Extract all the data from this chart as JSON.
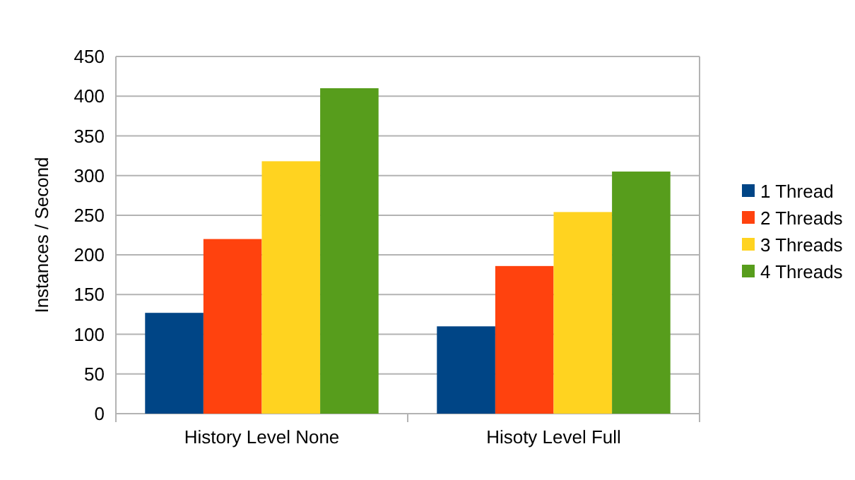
{
  "chart_data": {
    "type": "bar",
    "ylabel": "Instances / Second",
    "categories": [
      "History Level None",
      "Hisoty Level Full"
    ],
    "series": [
      {
        "name": "1 Thread",
        "color": "#004586",
        "values": [
          127,
          110
        ]
      },
      {
        "name": "2 Threads",
        "color": "#ff420e",
        "values": [
          220,
          186
        ]
      },
      {
        "name": "3 Threads",
        "color": "#ffd320",
        "values": [
          318,
          254
        ]
      },
      {
        "name": "4 Threads",
        "color": "#579d1c",
        "values": [
          410,
          305
        ]
      }
    ],
    "ylim": [
      0,
      450
    ],
    "yticks": [
      0,
      50,
      100,
      150,
      200,
      250,
      300,
      350,
      400,
      450
    ],
    "grid": "y",
    "legend": "right"
  }
}
